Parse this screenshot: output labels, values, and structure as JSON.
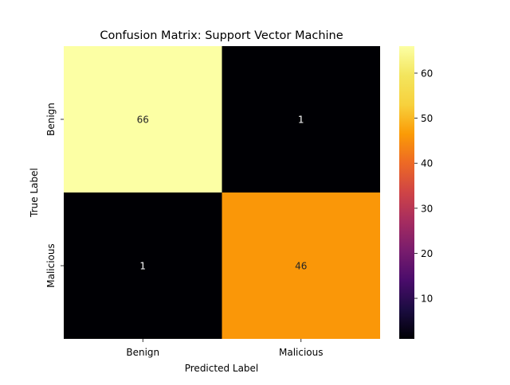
{
  "chart_data": {
    "type": "heatmap",
    "title": "Confusion Matrix: Support Vector Machine",
    "xlabel": "Predicted Label",
    "ylabel": "True Label",
    "x_categories": [
      "Benign",
      "Malicious"
    ],
    "y_categories": [
      "Benign",
      "Malicious"
    ],
    "values": [
      [
        66,
        1
      ],
      [
        1,
        46
      ]
    ],
    "colormap": "inferno",
    "color_range": [
      1,
      66
    ],
    "colorbar_ticks": [
      10,
      20,
      30,
      40,
      50,
      60
    ],
    "annotation_colors": {
      "on_light": "#262626",
      "on_dark": "#ffffff"
    }
  }
}
